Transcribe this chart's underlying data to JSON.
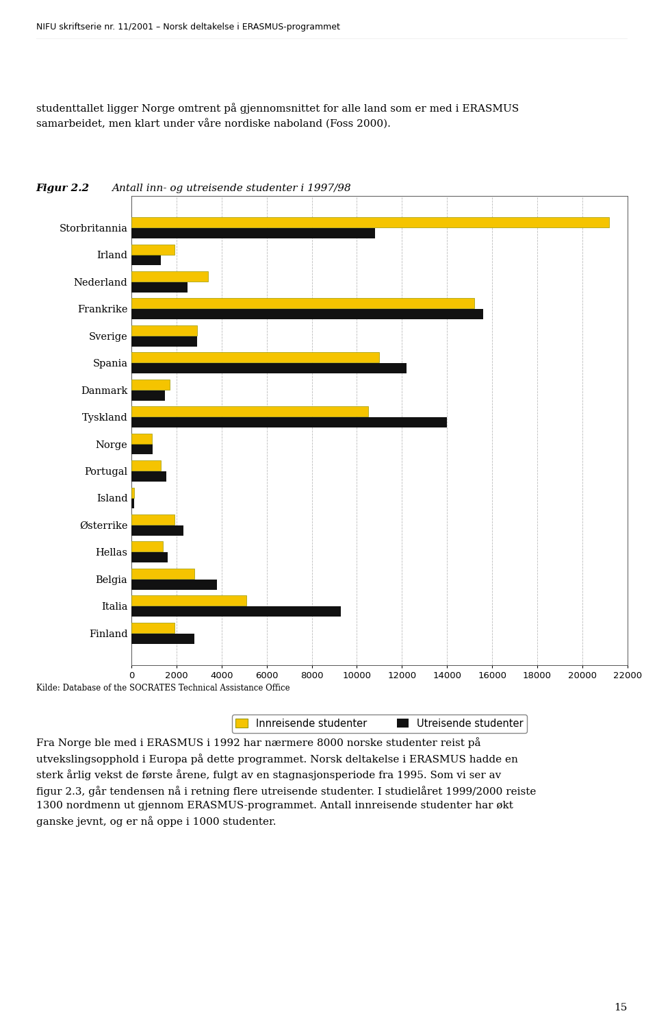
{
  "header": "NIFU skriftserie nr. 11/2001 – Norsk deltakelse i ERASMUS-programmet",
  "intro_text": "studenttallet ligger Norge omtrent på gjennomsnittet for alle land som er med i ERASMUS\nsamarbeidet, men klart under våre nordiske naboland (Foss 2000).",
  "fig_label": "Figur 2.2",
  "fig_title": "Antall inn- og utreisende studenter i 1997/98",
  "countries": [
    "Storbritannia",
    "Irland",
    "Nederland",
    "Frankrike",
    "Sverige",
    "Spania",
    "Danmark",
    "Tyskland",
    "Norge",
    "Portugal",
    "Island",
    "Østerrike",
    "Hellas",
    "Belgia",
    "Italia",
    "Finland"
  ],
  "innreisende": [
    21200,
    1900,
    3400,
    15200,
    2900,
    11000,
    1700,
    10500,
    900,
    1300,
    130,
    1900,
    1400,
    2800,
    5100,
    1900
  ],
  "utreisende": [
    10800,
    1300,
    2500,
    15600,
    2900,
    12200,
    1500,
    14000,
    950,
    1550,
    120,
    2300,
    1600,
    3800,
    9300,
    2800
  ],
  "inn_color": "#F5C400",
  "ut_color": "#111111",
  "xlim": [
    0,
    22000
  ],
  "xticks": [
    0,
    2000,
    4000,
    6000,
    8000,
    10000,
    12000,
    14000,
    16000,
    18000,
    20000,
    22000
  ],
  "legend_inn": "Innreisende studenter",
  "legend_ut": "Utreisende studenter",
  "source": "Kilde: Database of the SOCRATES Technical Assistance Office",
  "body_text": "Fra Norge ble med i ERASMUS i 1992 har nærmere 8000 norske studenter reist på\nutvekslingsopphold i Europa på dette programmet. Norsk deltakelse i ERASMUS hadde en\nsterk årlig vekst de første årene, fulgt av en stagnasjonsperiode fra 1995. Som vi ser av\nfigur 2.3, går tendensen nå i retning flere utreisende studenter. I studielåret 1999/2000 reiste\n1300 nordmenn ut gjennom ERASMUS-programmet. Antall innreisende studenter har økt\nganske jevnt, og er nå oppe i 1000 studenter.",
  "page_number": "15",
  "background_color": "#ffffff"
}
